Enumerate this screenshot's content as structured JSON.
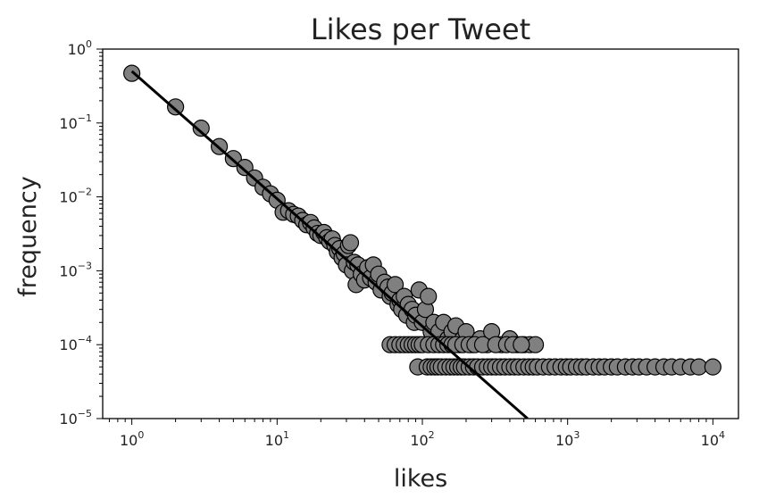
{
  "chart_data": {
    "type": "scatter",
    "title": "Likes per Tweet",
    "xlabel": "likes",
    "ylabel": "frequency",
    "xscale": "log",
    "yscale": "log",
    "xlim": [
      0.63,
      15000
    ],
    "ylim": [
      1e-05,
      1
    ],
    "grid": false,
    "x_ticks": [
      {
        "base": "10",
        "exp": "0"
      },
      {
        "base": "10",
        "exp": "1"
      },
      {
        "base": "10",
        "exp": "2"
      },
      {
        "base": "10",
        "exp": "3"
      },
      {
        "base": "10",
        "exp": "4"
      }
    ],
    "y_ticks": [
      {
        "base": "10",
        "exp": "0"
      },
      {
        "base": "10",
        "exp": "−1"
      },
      {
        "base": "10",
        "exp": "−2"
      },
      {
        "base": "10",
        "exp": "−3"
      },
      {
        "base": "10",
        "exp": "−4"
      },
      {
        "base": "10",
        "exp": "−5"
      }
    ],
    "x_tick_values": [
      1,
      10,
      100,
      1000,
      10000
    ],
    "y_tick_values": [
      1,
      0.1,
      0.01,
      0.001,
      0.0001,
      1e-05
    ],
    "marker_color": "#808080",
    "marker_edge": "#000000",
    "fit_line": {
      "x": [
        1,
        530
      ],
      "y": [
        0.5,
        1e-05
      ],
      "color": "#000000"
    },
    "series": [
      {
        "points": [
          [
            1,
            0.47
          ],
          [
            2,
            0.165
          ],
          [
            3,
            0.085
          ],
          [
            4,
            0.048
          ],
          [
            5,
            0.033
          ],
          [
            6,
            0.025
          ],
          [
            7,
            0.018
          ],
          [
            8,
            0.0135
          ],
          [
            9,
            0.011
          ],
          [
            10,
            0.009
          ],
          [
            11,
            0.0062
          ],
          [
            12,
            0.0065
          ],
          [
            13,
            0.0058
          ],
          [
            14,
            0.0055
          ],
          [
            15,
            0.0048
          ],
          [
            16,
            0.0042
          ],
          [
            17,
            0.0045
          ],
          [
            18,
            0.0038
          ],
          [
            19,
            0.0032
          ],
          [
            20,
            0.003
          ],
          [
            21,
            0.0033
          ],
          [
            22,
            0.0028
          ],
          [
            23,
            0.0025
          ],
          [
            24,
            0.0027
          ],
          [
            25,
            0.0022
          ],
          [
            26,
            0.0018
          ],
          [
            27,
            0.002
          ],
          [
            28,
            0.0015
          ],
          [
            29,
            0.0017
          ],
          [
            30,
            0.0012
          ],
          [
            31,
            0.0022
          ],
          [
            32,
            0.0024
          ],
          [
            33,
            0.001
          ],
          [
            34,
            0.0013
          ],
          [
            35,
            0.00065
          ],
          [
            36,
            0.0012
          ],
          [
            38,
            0.0009
          ],
          [
            40,
            0.00075
          ],
          [
            42,
            0.0011
          ],
          [
            44,
            0.0008
          ],
          [
            46,
            0.0012
          ],
          [
            48,
            0.0007
          ],
          [
            50,
            0.0009
          ],
          [
            52,
            0.00055
          ],
          [
            55,
            0.0007
          ],
          [
            58,
            0.0006
          ],
          [
            60,
            0.00045
          ],
          [
            62,
            0.0005
          ],
          [
            65,
            0.00065
          ],
          [
            68,
            0.00035
          ],
          [
            70,
            0.0004
          ],
          [
            72,
            0.0003
          ],
          [
            75,
            0.00045
          ],
          [
            78,
            0.00025
          ],
          [
            80,
            0.00035
          ],
          [
            85,
            0.0003
          ],
          [
            88,
            0.0002
          ],
          [
            90,
            0.00025
          ],
          [
            95,
            0.00055
          ],
          [
            100,
            0.0002
          ],
          [
            105,
            0.0003
          ],
          [
            110,
            0.00045
          ],
          [
            115,
            0.00015
          ],
          [
            120,
            0.0002
          ],
          [
            130,
            0.00015
          ],
          [
            140,
            0.0002
          ],
          [
            150,
            0.00012
          ],
          [
            160,
            0.00015
          ],
          [
            170,
            0.00018
          ],
          [
            180,
            0.0001
          ],
          [
            190,
            0.00012
          ],
          [
            200,
            0.00015
          ],
          [
            220,
            0.0001
          ],
          [
            250,
            0.00012
          ],
          [
            280,
            0.0001
          ],
          [
            300,
            0.00015
          ],
          [
            350,
            0.0001
          ],
          [
            400,
            0.00012
          ],
          [
            450,
            0.0001
          ],
          [
            500,
            0.0001
          ],
          [
            550,
            0.0001
          ],
          [
            600,
            0.0001
          ],
          [
            60,
            0.0001
          ],
          [
            65,
            0.0001
          ],
          [
            70,
            0.0001
          ],
          [
            75,
            0.0001
          ],
          [
            80,
            0.0001
          ],
          [
            85,
            0.0001
          ],
          [
            90,
            0.0001
          ],
          [
            95,
            0.0001
          ],
          [
            100,
            0.0001
          ],
          [
            110,
            0.0001
          ],
          [
            120,
            0.0001
          ],
          [
            130,
            0.0001
          ],
          [
            140,
            0.0001
          ],
          [
            150,
            0.0001
          ],
          [
            160,
            0.0001
          ],
          [
            170,
            0.0001
          ],
          [
            190,
            0.0001
          ],
          [
            210,
            0.0001
          ],
          [
            230,
            0.0001
          ],
          [
            260,
            0.0001
          ],
          [
            320,
            0.0001
          ],
          [
            380,
            0.0001
          ],
          [
            420,
            0.0001
          ],
          [
            480,
            0.0001
          ],
          [
            93,
            5e-05
          ],
          [
            108,
            5e-05
          ],
          [
            115,
            5e-05
          ],
          [
            122,
            5e-05
          ],
          [
            128,
            5e-05
          ],
          [
            135,
            5e-05
          ],
          [
            145,
            5e-05
          ],
          [
            155,
            5e-05
          ],
          [
            165,
            5e-05
          ],
          [
            175,
            5e-05
          ],
          [
            185,
            5e-05
          ],
          [
            195,
            5e-05
          ],
          [
            210,
            5e-05
          ],
          [
            225,
            5e-05
          ],
          [
            240,
            5e-05
          ],
          [
            260,
            5e-05
          ],
          [
            280,
            5e-05
          ],
          [
            300,
            5e-05
          ],
          [
            320,
            5e-05
          ],
          [
            345,
            5e-05
          ],
          [
            370,
            5e-05
          ],
          [
            400,
            5e-05
          ],
          [
            430,
            5e-05
          ],
          [
            460,
            5e-05
          ],
          [
            500,
            5e-05
          ],
          [
            540,
            5e-05
          ],
          [
            580,
            5e-05
          ],
          [
            620,
            5e-05
          ],
          [
            680,
            5e-05
          ],
          [
            750,
            5e-05
          ],
          [
            820,
            5e-05
          ],
          [
            900,
            5e-05
          ],
          [
            980,
            5e-05
          ],
          [
            1050,
            5e-05
          ],
          [
            1150,
            5e-05
          ],
          [
            1250,
            5e-05
          ],
          [
            1350,
            5e-05
          ],
          [
            1500,
            5e-05
          ],
          [
            1650,
            5e-05
          ],
          [
            1800,
            5e-05
          ],
          [
            2000,
            5e-05
          ],
          [
            2200,
            5e-05
          ],
          [
            2500,
            5e-05
          ],
          [
            2800,
            5e-05
          ],
          [
            3100,
            5e-05
          ],
          [
            3500,
            5e-05
          ],
          [
            4000,
            5e-05
          ],
          [
            4600,
            5e-05
          ],
          [
            5200,
            5e-05
          ],
          [
            6000,
            5e-05
          ],
          [
            7000,
            5e-05
          ],
          [
            8000,
            5e-05
          ],
          [
            10000,
            5e-05
          ]
        ]
      }
    ]
  }
}
